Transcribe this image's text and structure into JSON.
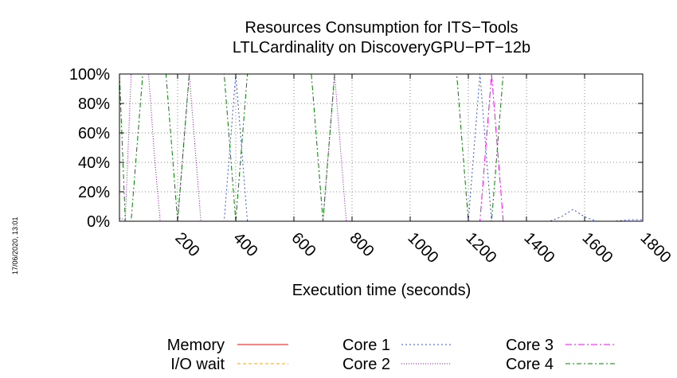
{
  "chart_data": {
    "type": "line",
    "title_line1": "Resources Consumption for ITS−Tools",
    "title_line2": "LTLCardinality on DiscoveryGPU−PT−12b",
    "xlabel": "Execution time (seconds)",
    "ylabel": "",
    "xlim": [
      0,
      1800
    ],
    "ylim": [
      0,
      100
    ],
    "x_ticks": [
      200,
      400,
      600,
      800,
      1000,
      1200,
      1400,
      1600,
      1800
    ],
    "y_ticks": [
      0,
      20,
      40,
      60,
      80,
      100
    ],
    "y_tick_labels": [
      "0%",
      "20%",
      "40%",
      "60%",
      "80%",
      "100%"
    ],
    "grid": true,
    "legend_position": "bottom",
    "timestamp": "17/06/2020, 13:01",
    "series": [
      {
        "name": "Memory",
        "color": "#ff0000",
        "dash": "",
        "x": [
          0,
          1800
        ],
        "values": [
          0,
          0
        ]
      },
      {
        "name": "I/O wait",
        "color": "#ffa500",
        "dash": "4,3",
        "x": [
          0,
          1800
        ],
        "values": [
          0,
          0
        ]
      },
      {
        "name": "Core 1",
        "color": "#3050ff",
        "dash": "2,3",
        "x": [
          0,
          100,
          200,
          280,
          320,
          360,
          400,
          440,
          480,
          800,
          1100,
          1200,
          1240,
          1280,
          1320,
          1360,
          1400,
          1480,
          1520,
          1560,
          1600,
          1640,
          1700,
          1760,
          1800
        ],
        "values": [
          0,
          0,
          0,
          0,
          0,
          0,
          100,
          0,
          0,
          0,
          0,
          0,
          100,
          0,
          0,
          0,
          0,
          0,
          3,
          8,
          3,
          0,
          0,
          1,
          1
        ]
      },
      {
        "name": "Core 2",
        "color": "#a000d0",
        "dash": "1,2",
        "x": [
          0,
          20,
          40,
          60,
          80,
          100,
          120,
          140,
          160,
          200,
          240,
          280,
          320,
          360,
          400,
          500,
          600,
          700,
          740,
          780,
          820,
          900,
          1000,
          1100,
          1200,
          1300,
          1400,
          1500,
          1600,
          1700,
          1800
        ],
        "values": [
          2,
          1,
          100,
          100,
          100,
          100,
          45,
          0,
          0,
          0,
          100,
          0,
          0,
          0,
          0,
          0,
          0,
          0,
          100,
          0,
          0,
          0,
          0,
          0,
          0,
          0,
          0,
          0,
          0,
          0,
          0
        ]
      },
      {
        "name": "Core 3",
        "color": "#ff00ff",
        "dash": "8,3,2,3",
        "x": [
          0,
          1000,
          1200,
          1240,
          1280,
          1320,
          1360,
          1500,
          1800
        ],
        "values": [
          0,
          0,
          0,
          0,
          100,
          0,
          0,
          0,
          0
        ]
      },
      {
        "name": "Core 4",
        "color": "#008000",
        "dash": "6,3,2,3",
        "x": [
          0,
          20,
          40,
          80,
          120,
          160,
          200,
          240,
          280,
          320,
          360,
          400,
          440,
          660,
          700,
          740,
          760,
          800,
          1160,
          1200,
          1240,
          1280,
          1320,
          1360,
          1800
        ],
        "values": [
          100,
          0,
          0,
          100,
          100,
          100,
          0,
          100,
          100,
          100,
          100,
          0,
          100,
          100,
          0,
          100,
          100,
          100,
          100,
          0,
          0,
          0,
          100,
          100,
          100
        ]
      }
    ]
  }
}
